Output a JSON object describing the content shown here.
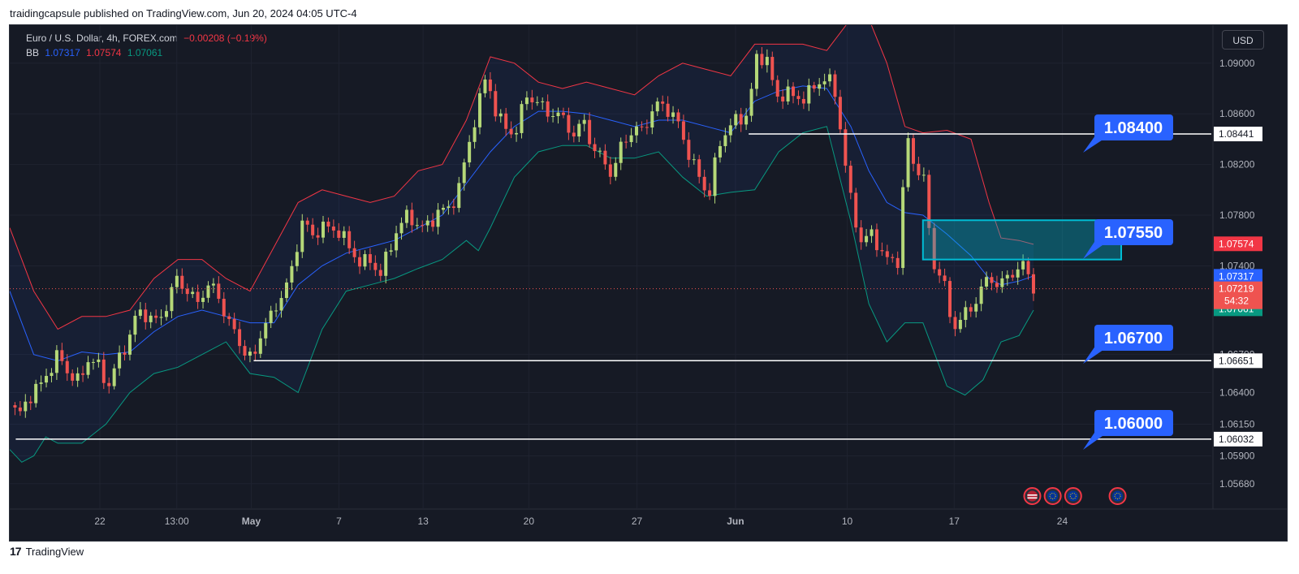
{
  "header": {
    "caption": "traidingcapsule published on TradingView.com, Jun 20, 2024 04:05 UTC-4"
  },
  "legend": {
    "symbol": "Euro / U.S. Dollar, 4h, FOREX.com",
    "change": "−0.00208 (−0.19%)",
    "indicator": "BB",
    "bb_basis": "1.07317",
    "bb_upper": "1.07574",
    "bb_lower": "1.07061"
  },
  "toolbar": {
    "currency": "USD"
  },
  "footer": {
    "brand": "TradingView",
    "mark": "17"
  },
  "colors": {
    "background": "#161a25",
    "up": "#26a69a",
    "up_body": "#b5d878",
    "down": "#ef5350",
    "bb_basis": "#2962ff",
    "bb_upper": "#f23645",
    "bb_lower": "#089981",
    "callout": "#2962ff",
    "zone": "#00bcd4"
  },
  "chart_data": {
    "type": "candlestick",
    "interval": "4h",
    "ylim": [
      1.0548,
      1.093
    ],
    "y_ticks": [
      "1.09000",
      "1.08600",
      "1.08200",
      "1.07800",
      "1.07400",
      "1.06700",
      "1.06400",
      "1.06150",
      "1.05900",
      "1.05680"
    ],
    "x_ticks": [
      {
        "label": "22",
        "t": 0.075
      },
      {
        "label": "13:00",
        "t": 0.139
      },
      {
        "label": "May",
        "t": 0.201,
        "bold": true
      },
      {
        "label": "7",
        "t": 0.274
      },
      {
        "label": "13",
        "t": 0.344
      },
      {
        "label": "20",
        "t": 0.432
      },
      {
        "label": "27",
        "t": 0.522
      },
      {
        "label": "Jun",
        "t": 0.604,
        "bold": true
      },
      {
        "label": "10",
        "t": 0.697
      },
      {
        "label": "17",
        "t": 0.786
      },
      {
        "label": "24",
        "t": 0.876
      }
    ],
    "price_path": [
      [
        0.0,
        1.063
      ],
      [
        0.008,
        1.0622
      ],
      [
        0.016,
        1.0637
      ],
      [
        0.025,
        1.0645
      ],
      [
        0.033,
        1.0658
      ],
      [
        0.041,
        1.067
      ],
      [
        0.049,
        1.0655
      ],
      [
        0.057,
        1.0648
      ],
      [
        0.066,
        1.0668
      ],
      [
        0.074,
        1.066
      ],
      [
        0.082,
        1.0645
      ],
      [
        0.09,
        1.0665
      ],
      [
        0.098,
        1.068
      ],
      [
        0.107,
        1.0705
      ],
      [
        0.115,
        1.07
      ],
      [
        0.123,
        1.0695
      ],
      [
        0.131,
        1.071
      ],
      [
        0.139,
        1.073
      ],
      [
        0.148,
        1.072
      ],
      [
        0.156,
        1.071
      ],
      [
        0.164,
        1.0725
      ],
      [
        0.172,
        1.072
      ],
      [
        0.18,
        1.07
      ],
      [
        0.188,
        1.0685
      ],
      [
        0.197,
        1.067
      ],
      [
        0.203,
        1.0665
      ],
      [
        0.211,
        1.0695
      ],
      [
        0.219,
        1.07
      ],
      [
        0.227,
        1.072
      ],
      [
        0.235,
        1.0735
      ],
      [
        0.244,
        1.078
      ],
      [
        0.252,
        1.076
      ],
      [
        0.26,
        1.0775
      ],
      [
        0.268,
        1.0765
      ],
      [
        0.276,
        1.077
      ],
      [
        0.284,
        1.0748
      ],
      [
        0.292,
        1.0745
      ],
      [
        0.3,
        1.0742
      ],
      [
        0.308,
        1.0735
      ],
      [
        0.316,
        1.075
      ],
      [
        0.324,
        1.0775
      ],
      [
        0.332,
        1.0778
      ],
      [
        0.34,
        1.0773
      ],
      [
        0.348,
        1.077
      ],
      [
        0.357,
        1.0785
      ],
      [
        0.365,
        1.0783
      ],
      [
        0.373,
        1.08
      ],
      [
        0.381,
        1.083
      ],
      [
        0.389,
        1.0865
      ],
      [
        0.397,
        1.089
      ],
      [
        0.405,
        1.086
      ],
      [
        0.413,
        1.0848
      ],
      [
        0.421,
        1.0845
      ],
      [
        0.43,
        1.0875
      ],
      [
        0.438,
        1.087
      ],
      [
        0.446,
        1.0862
      ],
      [
        0.454,
        1.086
      ],
      [
        0.462,
        1.0855
      ],
      [
        0.47,
        1.0842
      ],
      [
        0.478,
        1.0855
      ],
      [
        0.486,
        1.083
      ],
      [
        0.494,
        1.0825
      ],
      [
        0.502,
        1.081
      ],
      [
        0.51,
        1.084
      ],
      [
        0.518,
        1.0845
      ],
      [
        0.526,
        1.0848
      ],
      [
        0.534,
        1.086
      ],
      [
        0.542,
        1.087
      ],
      [
        0.55,
        1.086
      ],
      [
        0.558,
        1.085
      ],
      [
        0.566,
        1.0825
      ],
      [
        0.574,
        1.081
      ],
      [
        0.582,
        1.0795
      ],
      [
        0.59,
        1.0835
      ],
      [
        0.598,
        1.085
      ],
      [
        0.606,
        1.0855
      ],
      [
        0.614,
        1.086
      ],
      [
        0.622,
        1.0905
      ],
      [
        0.63,
        1.0905
      ],
      [
        0.638,
        1.087
      ],
      [
        0.646,
        1.088
      ],
      [
        0.654,
        1.087
      ],
      [
        0.662,
        1.0875
      ],
      [
        0.67,
        1.088
      ],
      [
        0.678,
        1.089
      ],
      [
        0.686,
        1.088
      ],
      [
        0.692,
        1.0845
      ],
      [
        0.7,
        1.079
      ],
      [
        0.708,
        1.076
      ],
      [
        0.716,
        1.0765
      ],
      [
        0.724,
        1.0755
      ],
      [
        0.732,
        1.0742
      ],
      [
        0.74,
        1.0745
      ],
      [
        0.746,
        1.0845
      ],
      [
        0.752,
        1.082
      ],
      [
        0.76,
        1.0815
      ],
      [
        0.768,
        1.074
      ],
      [
        0.776,
        1.0735
      ],
      [
        0.784,
        1.069
      ],
      [
        0.792,
        1.07
      ],
      [
        0.8,
        1.0705
      ],
      [
        0.808,
        1.0722
      ],
      [
        0.816,
        1.073
      ],
      [
        0.824,
        1.0725
      ],
      [
        0.832,
        1.0732
      ],
      [
        0.84,
        1.074
      ],
      [
        0.846,
        1.0738
      ],
      [
        0.852,
        1.0722
      ]
    ],
    "bb_upper_path": [
      [
        0.0,
        1.077
      ],
      [
        0.02,
        1.072
      ],
      [
        0.04,
        1.069
      ],
      [
        0.06,
        1.07
      ],
      [
        0.08,
        1.07
      ],
      [
        0.1,
        1.0705
      ],
      [
        0.12,
        1.073
      ],
      [
        0.14,
        1.0745
      ],
      [
        0.16,
        1.0745
      ],
      [
        0.18,
        1.073
      ],
      [
        0.2,
        1.072
      ],
      [
        0.22,
        1.0755
      ],
      [
        0.24,
        1.079
      ],
      [
        0.26,
        1.08
      ],
      [
        0.28,
        1.0795
      ],
      [
        0.3,
        1.079
      ],
      [
        0.32,
        1.0795
      ],
      [
        0.34,
        1.0815
      ],
      [
        0.36,
        1.082
      ],
      [
        0.38,
        1.0855
      ],
      [
        0.4,
        1.0905
      ],
      [
        0.42,
        1.09
      ],
      [
        0.44,
        1.0885
      ],
      [
        0.46,
        1.088
      ],
      [
        0.48,
        1.0885
      ],
      [
        0.5,
        1.088
      ],
      [
        0.52,
        1.0875
      ],
      [
        0.54,
        1.089
      ],
      [
        0.56,
        1.09
      ],
      [
        0.58,
        1.0895
      ],
      [
        0.6,
        1.089
      ],
      [
        0.62,
        1.0915
      ],
      [
        0.64,
        1.0915
      ],
      [
        0.66,
        1.0915
      ],
      [
        0.68,
        1.091
      ],
      [
        0.7,
        1.0935
      ],
      [
        0.715,
        1.0935
      ],
      [
        0.73,
        1.09
      ],
      [
        0.745,
        1.085
      ],
      [
        0.76,
        1.0845
      ],
      [
        0.78,
        1.0847
      ],
      [
        0.8,
        1.084
      ],
      [
        0.815,
        1.079
      ],
      [
        0.825,
        1.0762
      ],
      [
        0.84,
        1.076
      ],
      [
        0.852,
        1.0757
      ]
    ],
    "bb_basis_path": [
      [
        0.0,
        1.072
      ],
      [
        0.02,
        1.067
      ],
      [
        0.04,
        1.0665
      ],
      [
        0.06,
        1.0672
      ],
      [
        0.08,
        1.067
      ],
      [
        0.1,
        1.0672
      ],
      [
        0.12,
        1.0688
      ],
      [
        0.14,
        1.07
      ],
      [
        0.16,
        1.0705
      ],
      [
        0.18,
        1.07
      ],
      [
        0.2,
        1.0695
      ],
      [
        0.22,
        1.0695
      ],
      [
        0.24,
        1.0725
      ],
      [
        0.26,
        1.074
      ],
      [
        0.28,
        1.075
      ],
      [
        0.3,
        1.0755
      ],
      [
        0.32,
        1.076
      ],
      [
        0.34,
        1.077
      ],
      [
        0.36,
        1.078
      ],
      [
        0.38,
        1.0805
      ],
      [
        0.4,
        1.083
      ],
      [
        0.42,
        1.085
      ],
      [
        0.44,
        1.0862
      ],
      [
        0.46,
        1.0862
      ],
      [
        0.48,
        1.086
      ],
      [
        0.5,
        1.0855
      ],
      [
        0.52,
        1.085
      ],
      [
        0.54,
        1.0855
      ],
      [
        0.56,
        1.0855
      ],
      [
        0.58,
        1.085
      ],
      [
        0.6,
        1.0845
      ],
      [
        0.62,
        1.087
      ],
      [
        0.64,
        1.0878
      ],
      [
        0.66,
        1.0882
      ],
      [
        0.68,
        1.088
      ],
      [
        0.7,
        1.085
      ],
      [
        0.715,
        1.0815
      ],
      [
        0.73,
        1.079
      ],
      [
        0.745,
        1.0782
      ],
      [
        0.76,
        1.078
      ],
      [
        0.78,
        1.0765
      ],
      [
        0.8,
        1.0748
      ],
      [
        0.815,
        1.073
      ],
      [
        0.825,
        1.0725
      ],
      [
        0.84,
        1.0728
      ],
      [
        0.852,
        1.0732
      ]
    ],
    "bb_lower_path": [
      [
        0.0,
        1.0595
      ],
      [
        0.01,
        1.0585
      ],
      [
        0.02,
        1.059
      ],
      [
        0.03,
        1.0605
      ],
      [
        0.04,
        1.06
      ],
      [
        0.06,
        1.06
      ],
      [
        0.08,
        1.0615
      ],
      [
        0.1,
        1.064
      ],
      [
        0.12,
        1.0655
      ],
      [
        0.14,
        1.066
      ],
      [
        0.16,
        1.067
      ],
      [
        0.18,
        1.068
      ],
      [
        0.2,
        1.0655
      ],
      [
        0.22,
        1.0652
      ],
      [
        0.24,
        1.064
      ],
      [
        0.26,
        1.069
      ],
      [
        0.28,
        1.072
      ],
      [
        0.3,
        1.0725
      ],
      [
        0.32,
        1.073
      ],
      [
        0.34,
        1.0738
      ],
      [
        0.36,
        1.0745
      ],
      [
        0.38,
        1.076
      ],
      [
        0.39,
        1.0752
      ],
      [
        0.4,
        1.077
      ],
      [
        0.42,
        1.081
      ],
      [
        0.44,
        1.083
      ],
      [
        0.46,
        1.0835
      ],
      [
        0.48,
        1.0835
      ],
      [
        0.5,
        1.0825
      ],
      [
        0.52,
        1.0825
      ],
      [
        0.54,
        1.083
      ],
      [
        0.56,
        1.081
      ],
      [
        0.58,
        1.0795
      ],
      [
        0.6,
        1.0798
      ],
      [
        0.62,
        1.08
      ],
      [
        0.64,
        1.083
      ],
      [
        0.66,
        1.0845
      ],
      [
        0.68,
        1.085
      ],
      [
        0.7,
        1.0775
      ],
      [
        0.715,
        1.071
      ],
      [
        0.73,
        1.068
      ],
      [
        0.745,
        1.0695
      ],
      [
        0.76,
        1.0695
      ],
      [
        0.78,
        1.0645
      ],
      [
        0.795,
        1.0638
      ],
      [
        0.81,
        1.065
      ],
      [
        0.825,
        1.068
      ],
      [
        0.84,
        1.0685
      ],
      [
        0.852,
        1.0705
      ]
    ],
    "levels": [
      {
        "price": 1.08441,
        "label": "1.08441",
        "x_start": 0.615,
        "callout": "1.08400"
      },
      {
        "price": 1.06651,
        "label": "1.06651",
        "x_start": 0.203,
        "callout": "1.06700"
      },
      {
        "price": 1.06032,
        "label": "1.06032",
        "x_start": 0.005,
        "callout": "1.06000"
      }
    ],
    "zone": {
      "top": 1.0776,
      "bottom": 1.0745,
      "x_start": 0.76,
      "x_end": 0.925,
      "callout": "1.07550"
    },
    "current_price": {
      "value": "1.07219",
      "countdown": "54:32",
      "price": 1.07219
    },
    "axis_labels": [
      {
        "value": "1.07574",
        "price": 1.07574,
        "color": "#f23645"
      },
      {
        "value": "1.07317",
        "price": 1.07317,
        "color": "#2962ff"
      },
      {
        "value": "1.07061",
        "price": 1.07061,
        "color": "#089981"
      }
    ],
    "events": [
      {
        "icon": "us-flag-icon",
        "t": 0.851
      },
      {
        "icon": "eu-flag-icon",
        "t": 0.868
      },
      {
        "icon": "eu-flag-icon",
        "t": 0.885
      },
      {
        "icon": "eu-flag-icon",
        "t": 0.922
      }
    ]
  }
}
